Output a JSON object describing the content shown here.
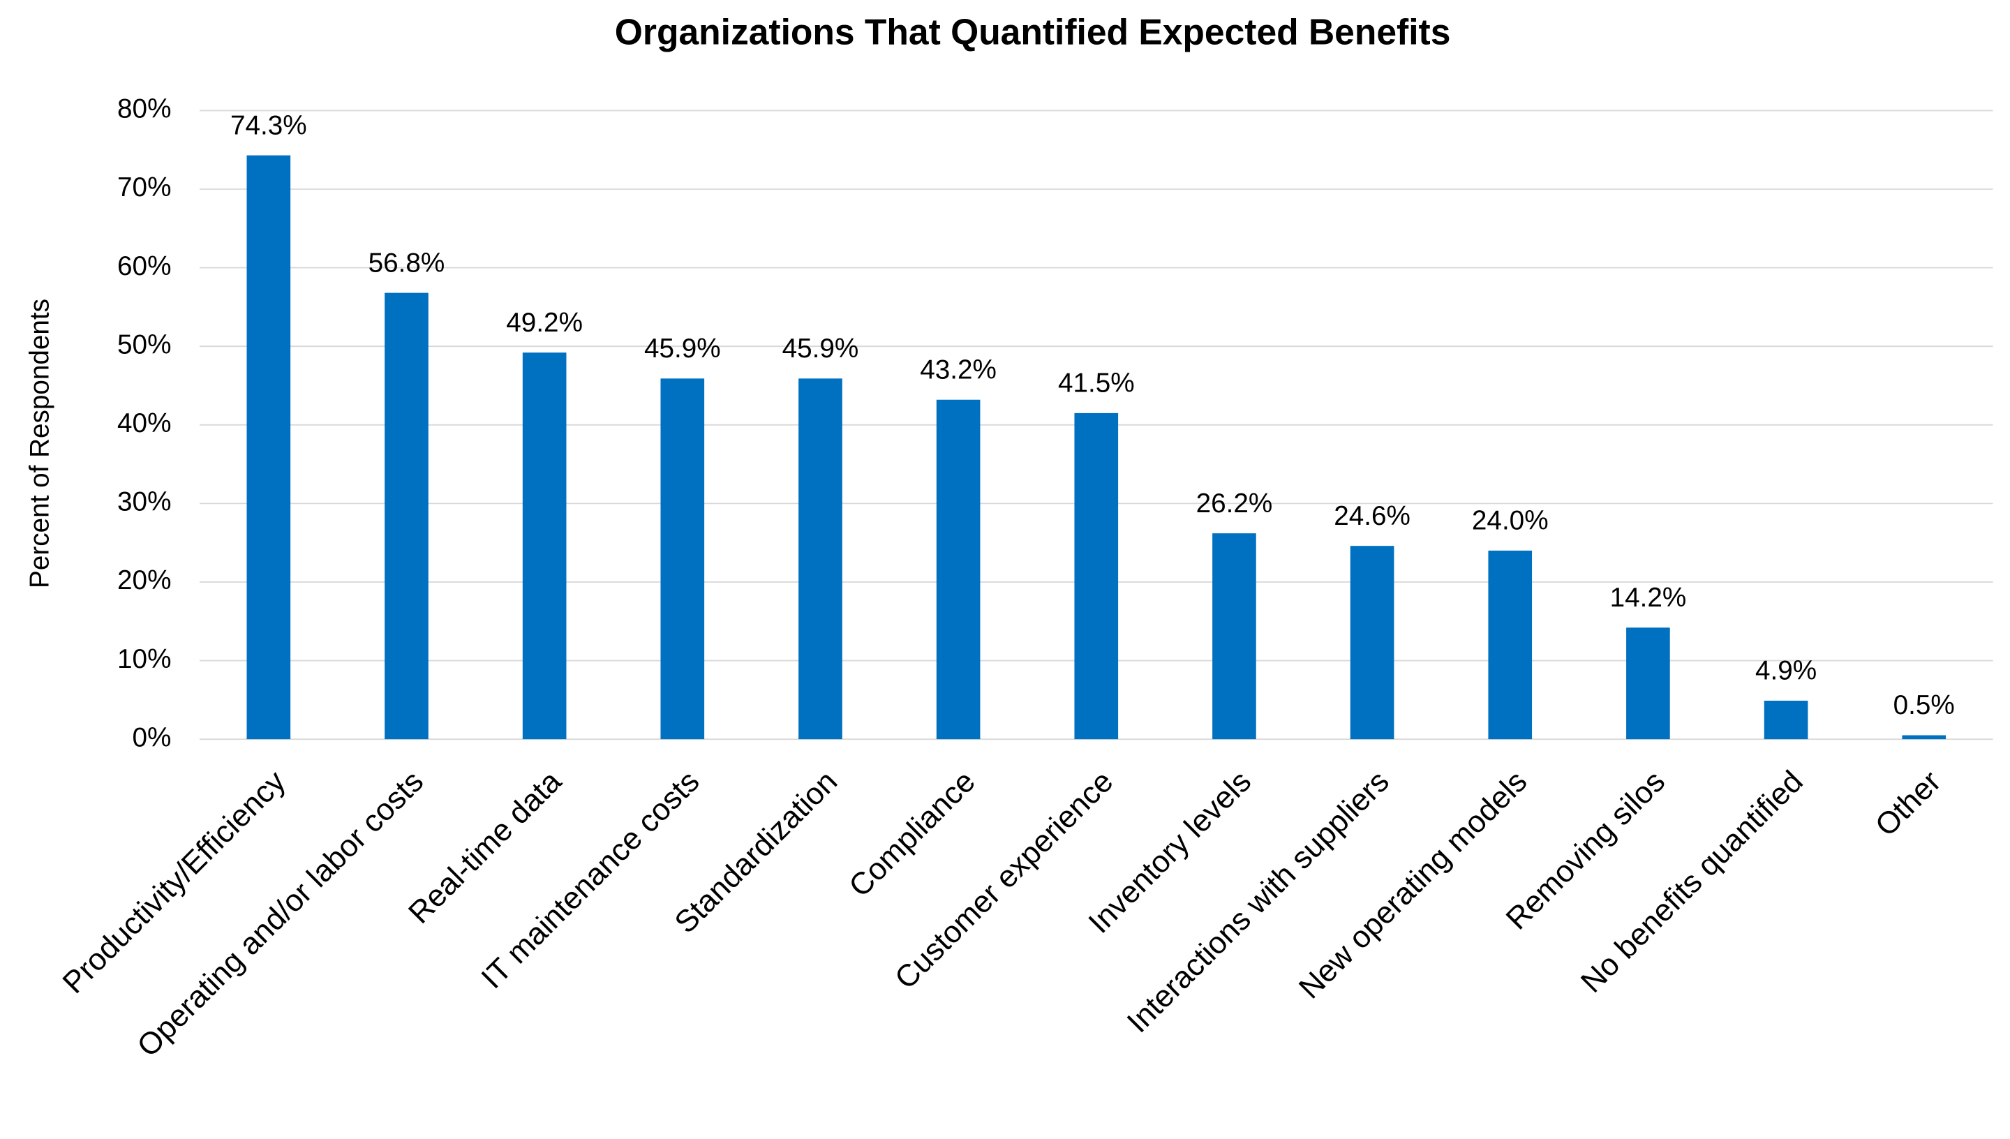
{
  "chart_data": {
    "type": "bar",
    "title": "Organizations That Quantified Expected Benefits",
    "y_label": "Percent of Respondents",
    "categories": [
      "Productivity/Efficiency",
      "Operating and/or labor costs",
      "Real-time data",
      "IT maintenance costs",
      "Standardization",
      "Compliance",
      "Customer experience",
      "Inventory levels",
      "Interactions with suppliers",
      "New operating models",
      "Removing silos",
      "No benefits quantified",
      "Other"
    ],
    "values": [
      74.3,
      56.8,
      49.2,
      45.9,
      45.9,
      43.2,
      41.5,
      26.2,
      24.6,
      24.0,
      14.2,
      4.9,
      0.5
    ],
    "value_labels": [
      "74.3%",
      "56.8%",
      "49.2%",
      "45.9%",
      "45.9%",
      "43.2%",
      "41.5%",
      "26.2%",
      "24.6%",
      "24.0%",
      "14.2%",
      "4.9%",
      "0.5%"
    ],
    "color": "#0070c0",
    "ylim": [
      0,
      80
    ],
    "yticks": [
      {
        "value": 0,
        "label": "0%"
      },
      {
        "value": 10,
        "label": "10%"
      },
      {
        "value": 20,
        "label": "20%"
      },
      {
        "value": 30,
        "label": "30%"
      },
      {
        "value": 40,
        "label": "40%"
      },
      {
        "value": 50,
        "label": "50%"
      },
      {
        "value": 60,
        "label": "60%"
      },
      {
        "value": 70,
        "label": "70%"
      },
      {
        "value": 80,
        "label": "80%"
      }
    ],
    "grid": true
  }
}
